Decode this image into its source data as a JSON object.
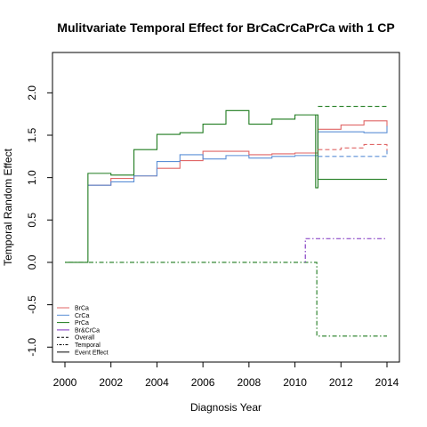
{
  "chart_data": {
    "type": "line",
    "title": "Mulitvariate Temporal Effect for BrCaCrCaPrCa with 1 CP",
    "xlabel": "Diagnosis Year",
    "ylabel": "Temporal Random Effect",
    "xlim": [
      2000,
      2014
    ],
    "ylim": [
      -1.05,
      2.35
    ],
    "x_ticks": [
      "2000",
      "2002",
      "2004",
      "2006",
      "2008",
      "2010",
      "2012",
      "2014"
    ],
    "x_tick_values": [
      2000,
      2002,
      2004,
      2006,
      2008,
      2010,
      2012,
      2014
    ],
    "y_ticks": [
      "-1.0",
      "-0.5",
      "0.0",
      "0.5",
      "1.0",
      "1.5",
      "2.0"
    ],
    "y_tick_values": [
      -1.0,
      -0.5,
      0.0,
      0.5,
      1.0,
      1.5,
      2.0
    ],
    "grid": false,
    "legend_position": "bottom-left",
    "legend": [
      {
        "label": "BrCa",
        "color": "#e06666",
        "dash": "solid"
      },
      {
        "label": "CrCa",
        "color": "#5b8fd6",
        "dash": "solid"
      },
      {
        "label": "PrCa",
        "color": "#1e7b1e",
        "dash": "solid"
      },
      {
        "label": "Br&CrCa",
        "color": "#7b2fbf",
        "dash": "solid"
      },
      {
        "label": "Overall",
        "color": "#000000",
        "dash": "dashed"
      },
      {
        "label": "Temporal",
        "color": "#000000",
        "dash": "dotdash"
      },
      {
        "label": "Event Effect",
        "color": "#000000",
        "dash": "solid"
      }
    ],
    "series": [
      {
        "color": "#e06666",
        "dash": "solid",
        "step": true,
        "x": [
          2001,
          2002,
          2003,
          2004,
          2005,
          2006,
          2007,
          2008,
          2009,
          2010,
          2011,
          2012,
          2013,
          2014
        ],
        "y": [
          0.91,
          0.99,
          1.02,
          1.11,
          1.2,
          1.31,
          1.31,
          1.27,
          1.28,
          1.29,
          1.57,
          1.62,
          1.67,
          1.6
        ]
      },
      {
        "color": "#5b8fd6",
        "dash": "solid",
        "step": true,
        "x": [
          2001,
          2002,
          2003,
          2004,
          2005,
          2006,
          2007,
          2008,
          2009,
          2010,
          2011,
          2012,
          2013,
          2014
        ],
        "y": [
          0.91,
          0.95,
          1.02,
          1.19,
          1.27,
          1.22,
          1.26,
          1.23,
          1.25,
          1.26,
          1.54,
          1.54,
          1.53,
          1.61
        ]
      },
      {
        "color": "#1e7b1e",
        "dash": "solid",
        "step": true,
        "x": [
          2000,
          2001,
          2002,
          2003,
          2004,
          2005,
          2006,
          2007,
          2008,
          2009,
          2010,
          2011,
          2014
        ],
        "y": [
          0.0,
          1.05,
          1.03,
          1.33,
          1.51,
          1.53,
          1.63,
          1.79,
          1.63,
          1.69,
          1.74,
          0.98,
          0.98
        ]
      },
      {
        "color": "#1e7b1e",
        "dash": "solid",
        "step": false,
        "x": [
          2010.9,
          2010.9,
          2011.0,
          2011.0
        ],
        "y": [
          1.74,
          0.88,
          0.88,
          1.74
        ]
      },
      {
        "color": "#e06666",
        "dash": "dashed",
        "step": true,
        "x": [
          2011,
          2012,
          2013,
          2014
        ],
        "y": [
          1.33,
          1.35,
          1.39,
          1.31
        ]
      },
      {
        "color": "#5b8fd6",
        "dash": "dashed",
        "step": true,
        "x": [
          2011,
          2012,
          2013,
          2014
        ],
        "y": [
          1.25,
          1.25,
          1.25,
          1.32
        ]
      },
      {
        "color": "#1e7b1e",
        "dash": "dashed",
        "step": true,
        "x": [
          2011,
          2012,
          2013,
          2014
        ],
        "y": [
          1.84,
          1.84,
          1.84,
          1.84
        ]
      },
      {
        "color": "#1e7b1e",
        "dash": "dotdash",
        "step": false,
        "x": [
          2000,
          2010.95,
          2010.95,
          2014
        ],
        "y": [
          0.0,
          0.0,
          -0.87,
          -0.87
        ]
      },
      {
        "color": "#7b2fbf",
        "dash": "dotdash",
        "step": false,
        "x": [
          2010.45,
          2010.45,
          2014
        ],
        "y": [
          0.0,
          0.28,
          0.28
        ]
      }
    ]
  }
}
